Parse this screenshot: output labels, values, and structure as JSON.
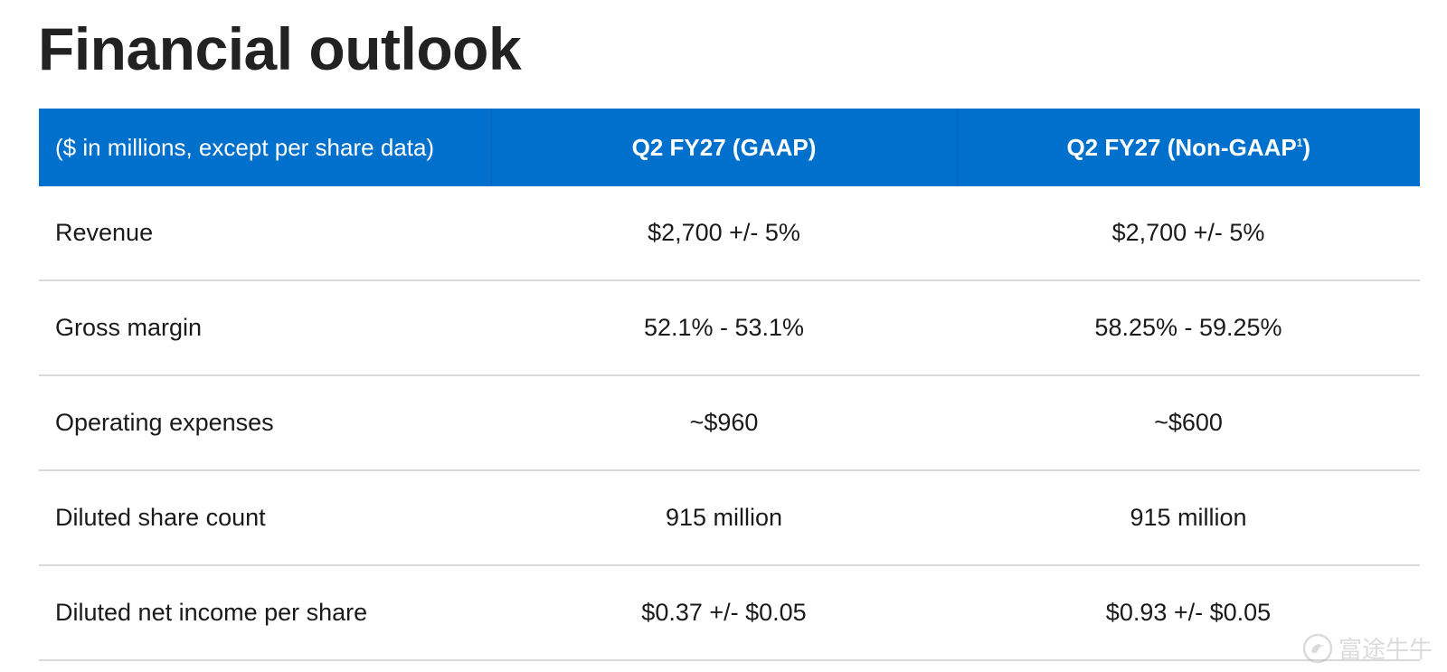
{
  "page": {
    "title": "Financial outlook"
  },
  "table": {
    "header": {
      "label": "($ in millions, except per share data)",
      "col_gaap": "Q2 FY27 (GAAP)",
      "col_nongaap": "Q2 FY27 (Non-GAAP",
      "col_nongaap_footnote": "1",
      "col_nongaap_close": ")"
    },
    "rows": [
      {
        "metric": "Revenue",
        "gaap": "$2,700 +/- 5%",
        "nongaap": "$2,700 +/- 5%"
      },
      {
        "metric": "Gross margin",
        "gaap": "52.1% - 53.1%",
        "nongaap": "58.25% - 59.25%"
      },
      {
        "metric": "Operating expenses",
        "gaap": "~$960",
        "nongaap": "~$600"
      },
      {
        "metric": "Diluted share count",
        "gaap": "915 million",
        "nongaap": "915 million"
      },
      {
        "metric": "Diluted net income per share",
        "gaap": "$0.37 +/- $0.05",
        "nongaap": "$0.93 +/- $0.05"
      }
    ]
  },
  "watermark": {
    "text": "富途牛牛",
    "icon": "futu-logo-icon"
  },
  "colors": {
    "header_background": "#0070cd",
    "header_text": "#ffffff",
    "row_divider": "#d9d9d9"
  }
}
